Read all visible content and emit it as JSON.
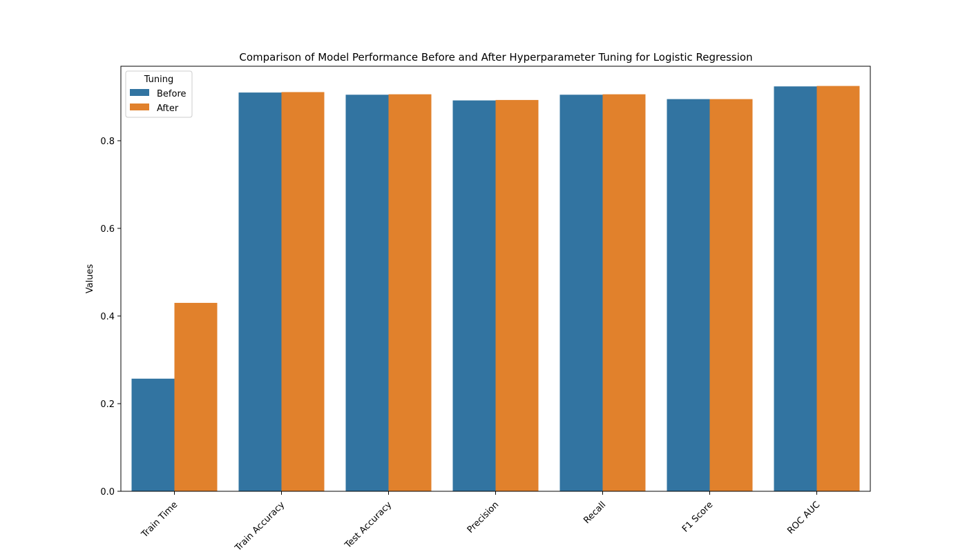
{
  "chart_data": {
    "type": "bar",
    "title": "Comparison of Model Performance Before and After Hyperparameter Tuning for Logistic Regression",
    "xlabel": "",
    "ylabel": "Values",
    "categories": [
      "Train Time",
      "Train Accuracy",
      "Test Accuracy",
      "Precision",
      "Recall",
      "F1 Score",
      "ROC AUC"
    ],
    "series": [
      {
        "name": "Before",
        "color": "#3274a1",
        "values": [
          0.257,
          0.91,
          0.905,
          0.892,
          0.905,
          0.895,
          0.924
        ]
      },
      {
        "name": "After",
        "color": "#e1812c",
        "values": [
          0.43,
          0.911,
          0.906,
          0.893,
          0.906,
          0.895,
          0.925
        ]
      }
    ],
    "ylim": [
      0,
      0.97
    ],
    "yticks": [
      "0.0",
      "0.2",
      "0.4",
      "0.6",
      "0.8"
    ],
    "legend": {
      "title": "Tuning",
      "placement": "upper-left"
    },
    "grid": false
  }
}
